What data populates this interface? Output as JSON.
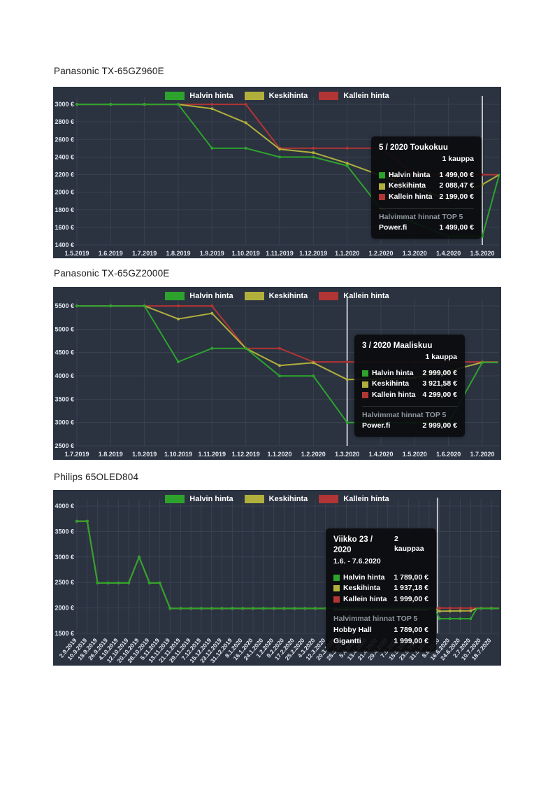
{
  "colors": {
    "halvin": "#2da32d",
    "keski": "#b1af3c",
    "kallein": "#b23535",
    "panel_bg": "#2b3240",
    "grid": "#3a4252",
    "axis_text": "#e3e7ee",
    "hover_line": "#bfc3ca",
    "tooltip_bg": "rgba(9,10,12,0.9)",
    "tooltip_muted": "#8f959d",
    "page_bg": "#ffffff",
    "title_text": "#1a1a1a"
  },
  "legend": {
    "items": [
      {
        "label": "Halvin hinta",
        "key": "halvin"
      },
      {
        "label": "Keskihinta",
        "key": "keski"
      },
      {
        "label": "Kallein hinta",
        "key": "kallein"
      }
    ]
  },
  "chart_data": [
    {
      "type": "line",
      "title": "Panasonic TX-65GZ960E",
      "y_axis": {
        "unit": "€",
        "min": 1400,
        "max": 3000,
        "ticks": [
          3000,
          2800,
          2600,
          2400,
          2200,
          2000,
          1800,
          1600,
          1400
        ]
      },
      "x_labels": [
        "1.5.2019",
        "1.6.2019",
        "1.7.2019",
        "1.8.2019",
        "1.9.2019",
        "1.10.2019",
        "1.11.2019",
        "1.12.2019",
        "1.1.2020",
        "1.2.2020",
        "1.3.2020",
        "1.4.2020",
        "1.5.2020"
      ],
      "hover_x": 12,
      "series": [
        {
          "name": "Halvin hinta",
          "key": "halvin",
          "points": [
            [
              0,
              2999
            ],
            [
              1,
              2999
            ],
            [
              2,
              2999
            ],
            [
              3,
              2999
            ],
            [
              4,
              2500
            ],
            [
              5,
              2500
            ],
            [
              6,
              2400
            ],
            [
              7,
              2400
            ],
            [
              8,
              2300
            ],
            [
              9,
              1810
            ],
            [
              10,
              1650
            ],
            [
              11,
              1499
            ],
            [
              12,
              1499
            ],
            [
              12.5,
              2199
            ]
          ]
        },
        {
          "name": "Keskihinta",
          "key": "keski",
          "points": [
            [
              0,
              2999
            ],
            [
              1,
              2999
            ],
            [
              2,
              2999
            ],
            [
              3,
              2999
            ],
            [
              4,
              2950
            ],
            [
              5,
              2790
            ],
            [
              6,
              2490
            ],
            [
              7,
              2450
            ],
            [
              8,
              2330
            ],
            [
              9,
              2190
            ],
            [
              10,
              2050
            ],
            [
              11,
              1917
            ],
            [
              12,
              2088
            ],
            [
              12.5,
              2199
            ]
          ]
        },
        {
          "name": "Kallein hinta",
          "key": "kallein",
          "points": [
            [
              0,
              2999
            ],
            [
              1,
              2999
            ],
            [
              2,
              2999
            ],
            [
              3,
              2999
            ],
            [
              4,
              2999
            ],
            [
              5,
              2999
            ],
            [
              6,
              2500
            ],
            [
              7,
              2500
            ],
            [
              8,
              2500
            ],
            [
              9,
              2500
            ],
            [
              10,
              2199
            ],
            [
              11,
              2199
            ],
            [
              12,
              2199
            ],
            [
              12.5,
              2199
            ]
          ]
        }
      ],
      "tooltip": {
        "title": "5 / 2020 Toukokuu",
        "trades": "1 kauppa",
        "rows": [
          {
            "label": "Halvin hinta",
            "key": "halvin",
            "value": "1 499,00 €"
          },
          {
            "label": "Keskihinta",
            "key": "keski",
            "value": "2 088,47 €"
          },
          {
            "label": "Kallein hinta",
            "key": "kallein",
            "value": "2 199,00 €"
          }
        ],
        "top_header": "Halvimmat hinnat TOP 5",
        "shops": [
          {
            "name": "Power.fi",
            "value": "1 499,00 €"
          }
        ]
      }
    },
    {
      "type": "line",
      "title": "Panasonic TX-65GZ2000E",
      "y_axis": {
        "unit": "€",
        "min": 2500,
        "max": 5500,
        "ticks": [
          5500,
          5000,
          4500,
          4000,
          3500,
          3000,
          2500
        ]
      },
      "x_labels": [
        "1.7.2019",
        "1.8.2019",
        "1.9.2019",
        "1.10.2019",
        "1.11.2019",
        "1.12.2019",
        "1.1.2020",
        "1.2.2020",
        "1.3.2020",
        "1.4.2020",
        "1.5.2020",
        "1.6.2020",
        "1.7.2020"
      ],
      "hover_x": 8,
      "series": [
        {
          "name": "Halvin hinta",
          "key": "halvin",
          "points": [
            [
              0,
              5499
            ],
            [
              1,
              5499
            ],
            [
              2,
              5499
            ],
            [
              3,
              4300
            ],
            [
              4,
              4590
            ],
            [
              5,
              4590
            ],
            [
              6,
              3999
            ],
            [
              7,
              3999
            ],
            [
              8,
              2999
            ],
            [
              9,
              2999
            ],
            [
              10,
              2999
            ],
            [
              11,
              2999
            ],
            [
              12,
              4290
            ],
            [
              12.45,
              4290
            ]
          ]
        },
        {
          "name": "Keskihinta",
          "key": "keski",
          "points": [
            [
              0,
              5499
            ],
            [
              1,
              5499
            ],
            [
              2,
              5499
            ],
            [
              3,
              5220
            ],
            [
              4,
              5340
            ],
            [
              5,
              4590
            ],
            [
              6,
              4220
            ],
            [
              7,
              4280
            ],
            [
              8,
              3921
            ],
            [
              9,
              3930
            ],
            [
              10,
              3960
            ],
            [
              11,
              4100
            ],
            [
              12,
              4290
            ],
            [
              12.45,
              4290
            ]
          ]
        },
        {
          "name": "Kallein hinta",
          "key": "kallein",
          "points": [
            [
              0,
              5499
            ],
            [
              1,
              5499
            ],
            [
              2,
              5499
            ],
            [
              3,
              5499
            ],
            [
              4,
              5499
            ],
            [
              5,
              4590
            ],
            [
              6,
              4590
            ],
            [
              7,
              4299
            ],
            [
              8,
              4299
            ],
            [
              9,
              4299
            ],
            [
              10,
              4299
            ],
            [
              11,
              4299
            ],
            [
              12,
              4299
            ],
            [
              12.45,
              4299
            ]
          ]
        }
      ],
      "tooltip": {
        "title": "3 / 2020 Maaliskuu",
        "trades": "1 kauppa",
        "rows": [
          {
            "label": "Halvin hinta",
            "key": "halvin",
            "value": "2 999,00 €"
          },
          {
            "label": "Keskihinta",
            "key": "keski",
            "value": "3 921,58 €"
          },
          {
            "label": "Kallein hinta",
            "key": "kallein",
            "value": "4 299,00 €"
          }
        ],
        "top_header": "Halvimmat hinnat TOP 5",
        "shops": [
          {
            "name": "Power.fi",
            "value": "2 999,00 €"
          }
        ]
      }
    },
    {
      "type": "line",
      "title": "Philips 65OLED804",
      "y_axis": {
        "unit": "€",
        "min": 1500,
        "max": 4000,
        "ticks": [
          4000,
          3500,
          3000,
          2500,
          2000,
          1500
        ]
      },
      "x_labels": [
        "2.9.2019",
        "10.9.2019",
        "18.9.2019",
        "26.9.2019",
        "4.10.2019",
        "12.10.2019",
        "20.10.2019",
        "28.10.2019",
        "5.11.2019",
        "13.11.2019",
        "21.11.2019",
        "29.11.2019",
        "7.12.2019",
        "15.12.2019",
        "23.12.2019",
        "31.12.2019",
        "8.1.2020",
        "16.1.2020",
        "24.1.2020",
        "1.2.2020",
        "9.2.2020",
        "17.2.2020",
        "25.2.2020",
        "4.3.2020",
        "12.3.2020",
        "20.3.2020",
        "28.3.2020",
        "5.4.2020",
        "13.4.2020",
        "21.4.2020",
        "29.4.2020",
        "7.5.2020",
        "15.5.2020",
        "23.5.2020",
        "31.5.2020",
        "8.6.2020",
        "16.6.2020",
        "24.6.2020",
        "2.7.2020",
        "10.7.2020",
        "18.7.2020"
      ],
      "hover_x": 34.8,
      "series": [
        {
          "name": "Halvin hinta",
          "key": "halvin",
          "points": [
            [
              0,
              3700
            ],
            [
              1,
              3700
            ],
            [
              2,
              2490
            ],
            [
              5,
              2490
            ],
            [
              6,
              3000
            ],
            [
              7,
              2490
            ],
            [
              8,
              2490
            ],
            [
              9,
              1990
            ],
            [
              34.5,
              1990
            ],
            [
              35,
              1789
            ],
            [
              38,
              1789
            ],
            [
              38.6,
              1990
            ],
            [
              40.7,
              1990
            ]
          ]
        },
        {
          "name": "Keskihinta",
          "key": "keski",
          "points": [
            [
              0,
              3700
            ],
            [
              1,
              3700
            ],
            [
              2,
              2490
            ],
            [
              5,
              2490
            ],
            [
              6,
              3000
            ],
            [
              7,
              2490
            ],
            [
              8,
              2490
            ],
            [
              9,
              1990
            ],
            [
              34.5,
              1990
            ],
            [
              35,
              1937
            ],
            [
              38,
              1945
            ],
            [
              38.6,
              1990
            ],
            [
              40.7,
              1990
            ]
          ]
        },
        {
          "name": "Kallein hinta",
          "key": "kallein",
          "points": [
            [
              0,
              3700
            ],
            [
              1,
              3700
            ],
            [
              2,
              2490
            ],
            [
              5,
              2490
            ],
            [
              6,
              3000
            ],
            [
              7,
              2490
            ],
            [
              8,
              2490
            ],
            [
              9,
              1990
            ],
            [
              34.3,
              1990
            ],
            [
              34.8,
              1999
            ],
            [
              40.7,
              1999
            ]
          ]
        }
      ],
      "tooltip": {
        "title": "Viikko 23 / 2020",
        "trades": "2 kauppaa",
        "subtitle": "1.6. - 7.6.2020",
        "rows": [
          {
            "label": "Halvin hinta",
            "key": "halvin",
            "value": "1 789,00 €"
          },
          {
            "label": "Keskihinta",
            "key": "keski",
            "value": "1 937,18 €"
          },
          {
            "label": "Kallein hinta",
            "key": "kallein",
            "value": "1 999,00 €"
          }
        ],
        "top_header": "Halvimmat hinnat TOP 5",
        "shops": [
          {
            "name": "Hobby Hall",
            "value": "1 789,00 €"
          },
          {
            "name": "Gigantti",
            "value": "1 999,00 €"
          }
        ]
      }
    }
  ]
}
